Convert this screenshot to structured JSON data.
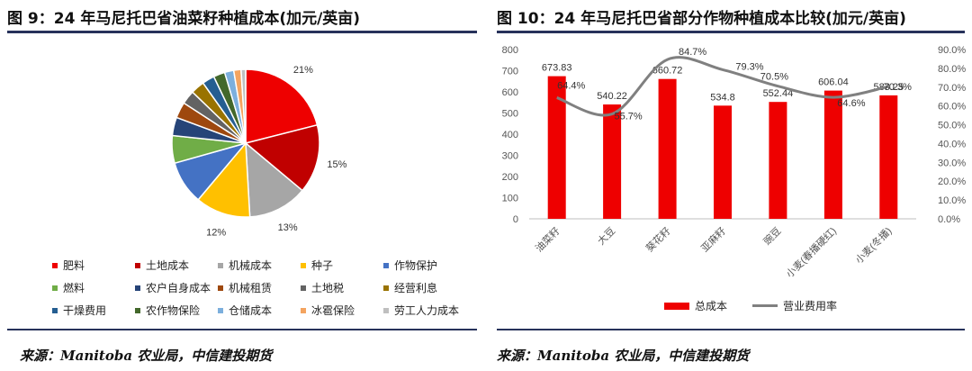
{
  "left": {
    "title": "图 9：24 年马尼托巴省油菜籽种植成本(加元/英亩)",
    "source": "来源：Manitoba 农业局，中信建投期货"
  },
  "right": {
    "title": "图 10：24 年马尼托巴省部分作物种植成本比较(加元/英亩)",
    "source": "来源：Manitoba 农业局，中信建投期货"
  },
  "chart_data": [
    {
      "type": "pie",
      "labels": [
        "肥料",
        "土地成本",
        "机械成本",
        "种子",
        "作物保护",
        "燃料",
        "农户自身成本",
        "机械租赁",
        "土地税",
        "经营利息",
        "干燥费用",
        "农作物保险",
        "仓储成本",
        "冰雹保险",
        "劳工人力成本"
      ],
      "values": [
        21,
        15,
        13,
        12,
        9.5,
        6,
        4,
        3.5,
        3,
        3,
        2.7,
        2.5,
        2,
        1.6,
        1
      ],
      "shown_labels": {
        "肥料": "21%",
        "土地成本": "15%",
        "机械成本": "13%",
        "种子": "12%"
      },
      "colors": [
        "#ee0000",
        "#c00000",
        "#a6a6a6",
        "#ffc000",
        "#4472c4",
        "#70ad47",
        "#264478",
        "#9e480e",
        "#636363",
        "#997300",
        "#255e91",
        "#43682b",
        "#7cafdd",
        "#f4a460",
        "#bfbfbf"
      ],
      "legend_position": "bottom"
    },
    {
      "type": "bar+line",
      "categories": [
        "油菜籽",
        "大豆",
        "葵花籽",
        "亚麻籽",
        "豌豆",
        "小麦(春播硬红)",
        "小麦(冬播)"
      ],
      "series": [
        {
          "name": "总成本",
          "type": "bar",
          "axis": "left",
          "color": "#ee0000",
          "values": [
            673.83,
            540.22,
            660.72,
            534.8,
            552.44,
            606.04,
            583.25
          ],
          "labels": [
            "673.83",
            "540.22",
            "660.72",
            "534.8",
            "552.44",
            "606.04",
            "583.25"
          ]
        },
        {
          "name": "营业费用率",
          "type": "line",
          "axis": "right",
          "color": "#808080",
          "values": [
            64.4,
            55.7,
            84.7,
            79.3,
            70.5,
            64.6,
            70.3
          ],
          "labels": [
            "64.4%",
            "55.7%",
            "84.7%",
            "79.3%",
            "70.5%",
            "64.6%",
            "70.3%"
          ]
        }
      ],
      "y_left": {
        "min": 0,
        "max": 800,
        "step": 100,
        "ticks": [
          "0",
          "100",
          "200",
          "300",
          "400",
          "500",
          "600",
          "700",
          "800"
        ]
      },
      "y_right": {
        "min": 0,
        "max": 90,
        "step": 10,
        "ticks": [
          "0.0%",
          "10.0%",
          "20.0%",
          "30.0%",
          "40.0%",
          "50.0%",
          "60.0%",
          "70.0%",
          "80.0%",
          "90.0%"
        ]
      },
      "grid": false,
      "legend_position": "bottom"
    }
  ]
}
